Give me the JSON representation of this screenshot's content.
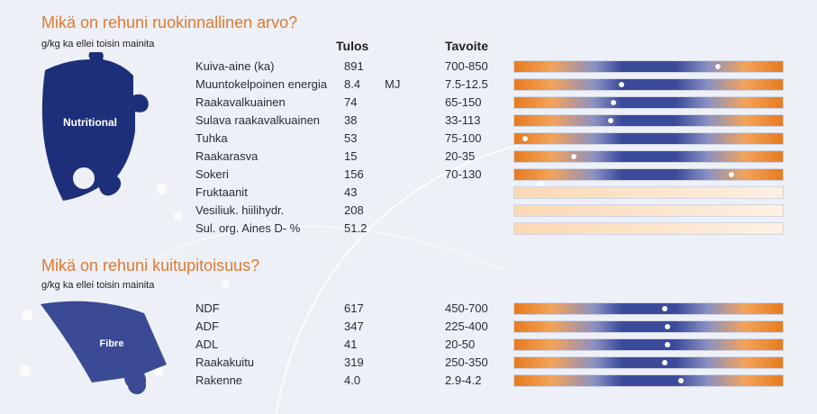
{
  "nutrition": {
    "title": "Mikä on rehuni ruokinnallinen arvo?",
    "subtitle": "g/kg ka ellei toisin mainita",
    "col_result": "Tulos",
    "col_target": "Tavoite",
    "icon_label": "Nutritional",
    "rows": [
      {
        "name": "Kuiva-aine (ka)",
        "value": "891",
        "unit": "",
        "target": "700-850",
        "bar": true,
        "marker": 0.76
      },
      {
        "name": "Muuntokelpoinen energia",
        "value": "8.4",
        "unit": "MJ",
        "target": "7.5-12.5",
        "bar": true,
        "marker": 0.4
      },
      {
        "name": "Raakavalkuainen",
        "value": "74",
        "unit": "",
        "target": "65-150",
        "bar": true,
        "marker": 0.37
      },
      {
        "name": "Sulava raakavalkuainen",
        "value": "38",
        "unit": "",
        "target": "33-113",
        "bar": true,
        "marker": 0.36
      },
      {
        "name": "Tuhka",
        "value": "53",
        "unit": "",
        "target": "75-100",
        "bar": true,
        "marker": 0.04
      },
      {
        "name": "Raakarasva",
        "value": "15",
        "unit": "",
        "target": "20-35",
        "bar": true,
        "marker": 0.22
      },
      {
        "name": "Sokeri",
        "value": "156",
        "unit": "",
        "target": "70-130",
        "bar": true,
        "marker": 0.81
      },
      {
        "name": "Fruktaanit",
        "value": "43",
        "unit": "",
        "target": "",
        "bar": false
      },
      {
        "name": "Vesiliuk. hiilihydr.",
        "value": "208",
        "unit": "",
        "target": "",
        "bar": false
      },
      {
        "name": "Sul. org. Aines D- %",
        "value": "51.2",
        "unit": "",
        "target": "",
        "bar": false
      }
    ]
  },
  "fibre": {
    "title": "Mikä on rehuni kuitupitoisuus?",
    "subtitle": "g/kg ka ellei toisin mainita",
    "icon_label": "Fibre",
    "rows": [
      {
        "name": "NDF",
        "value": "617",
        "unit": "",
        "target": "450-700",
        "bar": true,
        "marker": 0.56
      },
      {
        "name": "ADF",
        "value": "347",
        "unit": "",
        "target": "225-400",
        "bar": true,
        "marker": 0.57
      },
      {
        "name": "ADL",
        "value": "41",
        "unit": "",
        "target": "20-50",
        "bar": true,
        "marker": 0.57
      },
      {
        "name": "Raakakuitu",
        "value": "319",
        "unit": "",
        "target": "250-350",
        "bar": true,
        "marker": 0.56
      },
      {
        "name": "Rakenne",
        "value": "4.0",
        "unit": "",
        "target": "2.9-4.2",
        "bar": true,
        "marker": 0.62
      }
    ]
  },
  "colors": {
    "title": "#e2782f",
    "puzzle_nutritional": "#1e2f7a",
    "puzzle_fibre": "#3a4a94"
  }
}
